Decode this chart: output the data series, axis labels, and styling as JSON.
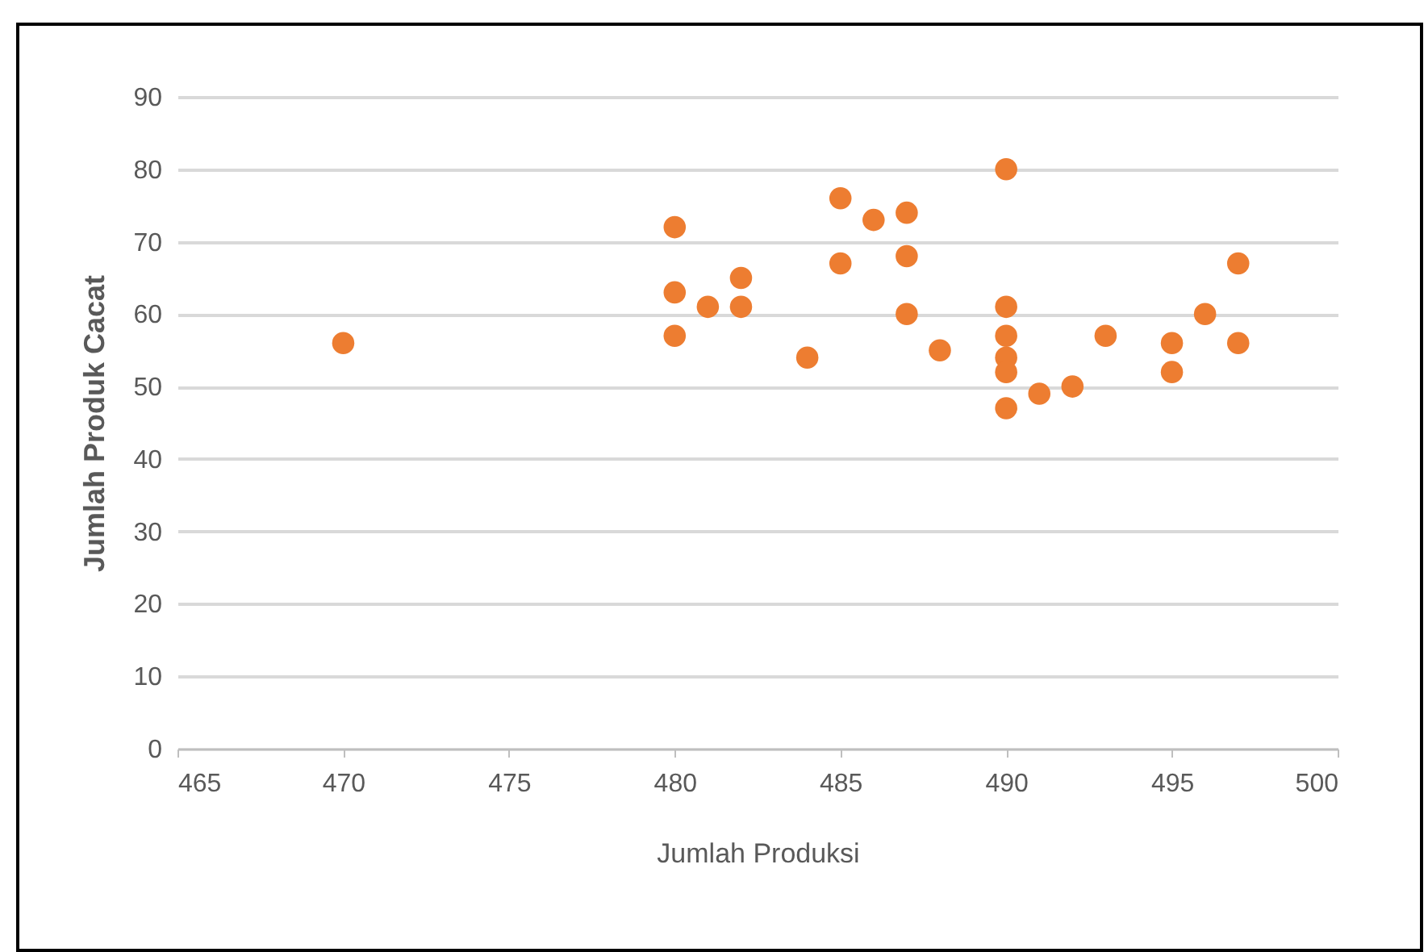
{
  "chart_data": {
    "type": "scatter",
    "xlabel": "Jumlah Produksi",
    "ylabel": "Jumlah Produk Cacat",
    "x": [
      470,
      480,
      480,
      480,
      481,
      482,
      482,
      484,
      485,
      485,
      486,
      487,
      487,
      487,
      488,
      490,
      490,
      490,
      490,
      490,
      490,
      491,
      492,
      493,
      495,
      495,
      496,
      497,
      497
    ],
    "series": [
      {
        "color": "#ed7d31",
        "values": [
          56,
          72,
          63,
          57,
          61,
          65,
          61,
          54,
          76,
          67,
          73,
          74,
          68,
          60,
          55,
          80,
          61,
          57,
          54,
          52,
          47,
          49,
          50,
          57,
          56,
          52,
          60,
          67,
          56
        ]
      }
    ],
    "xlim": [
      465,
      500
    ],
    "xticks": [
      465,
      470,
      475,
      480,
      485,
      490,
      495,
      500
    ],
    "ylim": [
      0,
      90
    ],
    "yticks": [
      0,
      10,
      20,
      30,
      40,
      50,
      60,
      70,
      80,
      90
    ],
    "grid": "y",
    "marker": "circle",
    "legend": false
  }
}
